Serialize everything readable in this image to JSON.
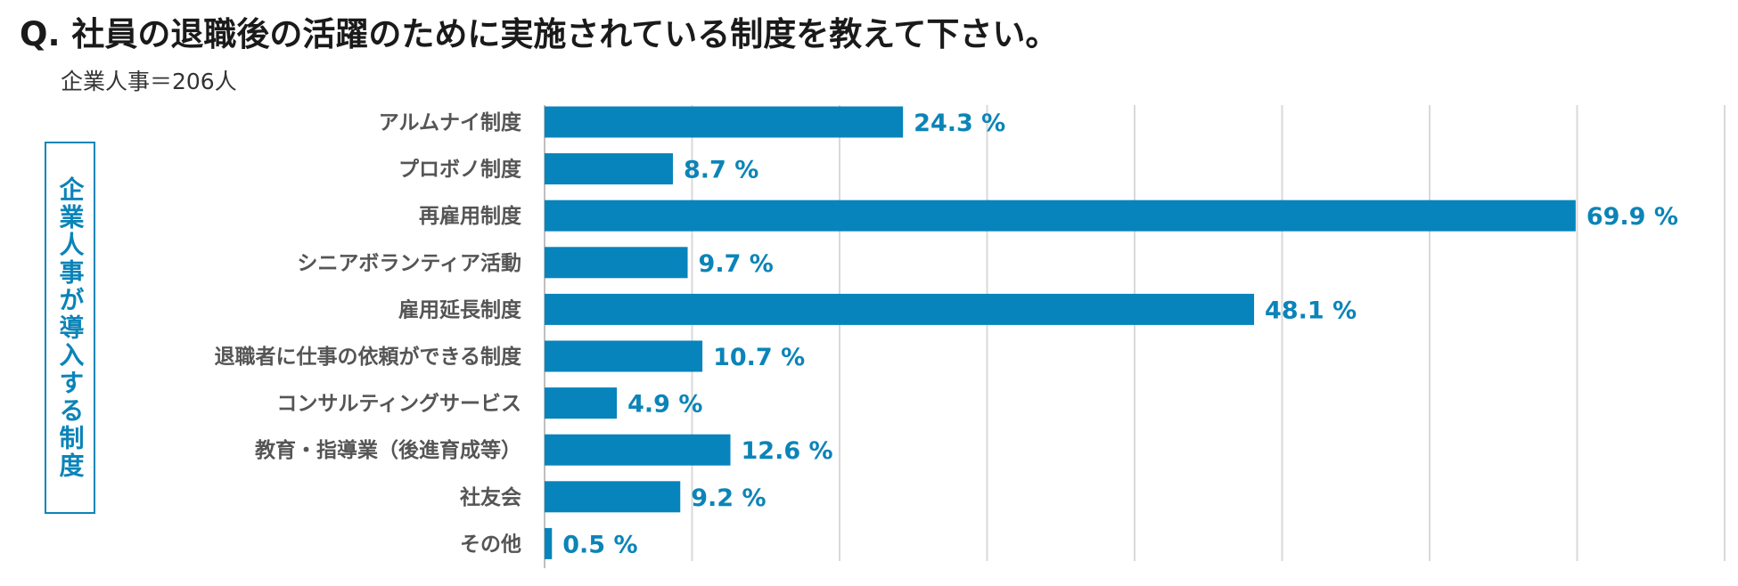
{
  "header": {
    "question": "Q. 社員の退職後の活躍のために実施されている制度を教えて下さい。",
    "sample": "企業人事＝206人"
  },
  "side_label": "企業人事が導入する制度",
  "colors": {
    "bar": "#0784bc",
    "value_text": "#0b84b8",
    "grid": "#d9d9d9",
    "axis": "#bfbfbf"
  },
  "chart_data": {
    "type": "bar",
    "orientation": "horizontal",
    "title": "Q. 社員の退職後の活躍のために実施されている制度を教えて下さい。",
    "subtitle": "企業人事＝206人",
    "xlabel": "",
    "ylabel": "企業人事が導入する制度",
    "xlim": [
      0,
      80
    ],
    "grid_step": 10,
    "grid": true,
    "value_suffix": " %",
    "categories": [
      "アルムナイ制度",
      "プロボノ制度",
      "再雇用制度",
      "シニアボランティア活動",
      "雇用延長制度",
      "退職者に仕事の依頼ができる制度",
      "コンサルティングサービス",
      "教育・指導業（後進育成等）",
      "社友会",
      "その他"
    ],
    "values": [
      24.3,
      8.7,
      69.9,
      9.7,
      48.1,
      10.7,
      4.9,
      12.6,
      9.2,
      0.5
    ],
    "value_labels": [
      "24.3 %",
      "8.7 %",
      "69.9 %",
      "9.7 %",
      "48.1 %",
      "10.7 %",
      "4.9 %",
      "12.6 %",
      "9.2 %",
      "0.5 %"
    ]
  }
}
